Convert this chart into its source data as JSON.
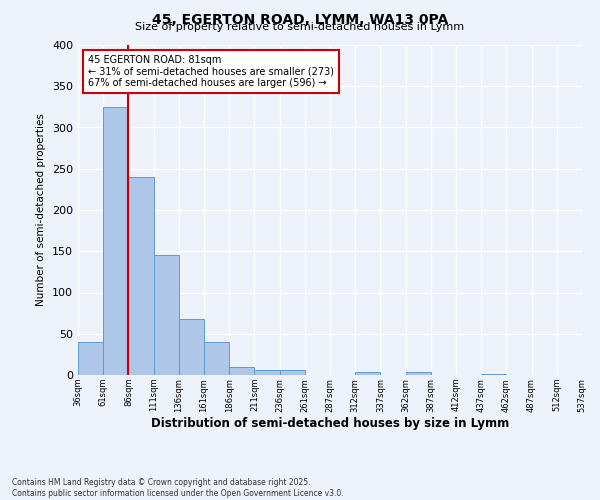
{
  "title": "45, EGERTON ROAD, LYMM, WA13 0PA",
  "subtitle": "Size of property relative to semi-detached houses in Lymm",
  "xlabel": "Distribution of semi-detached houses by size in Lymm",
  "ylabel": "Number of semi-detached properties",
  "bar_values": [
    40,
    325,
    240,
    146,
    68,
    40,
    10,
    6,
    6,
    0,
    0,
    4,
    0,
    4,
    0,
    0,
    1,
    0,
    0,
    0
  ],
  "bin_labels": [
    "36sqm",
    "61sqm",
    "86sqm",
    "111sqm",
    "136sqm",
    "161sqm",
    "186sqm",
    "211sqm",
    "236sqm",
    "261sqm",
    "287sqm",
    "312sqm",
    "337sqm",
    "362sqm",
    "387sqm",
    "412sqm",
    "437sqm",
    "462sqm",
    "487sqm",
    "512sqm",
    "537sqm"
  ],
  "bar_color": "#aec6e8",
  "bar_edge_color": "#5b9bd5",
  "bar_width": 1.0,
  "ylim": [
    0,
    400
  ],
  "yticks": [
    0,
    50,
    100,
    150,
    200,
    250,
    300,
    350,
    400
  ],
  "vline_x": 2,
  "vline_color": "#cc0000",
  "annotation_text": "45 EGERTON ROAD: 81sqm\n← 31% of semi-detached houses are smaller (273)\n67% of semi-detached houses are larger (596) →",
  "annotation_box_color": "#ffffff",
  "annotation_box_edge": "#cc0000",
  "footer_text": "Contains HM Land Registry data © Crown copyright and database right 2025.\nContains public sector information licensed under the Open Government Licence v3.0.",
  "background_color": "#eef2fb",
  "grid_color": "#ffffff"
}
